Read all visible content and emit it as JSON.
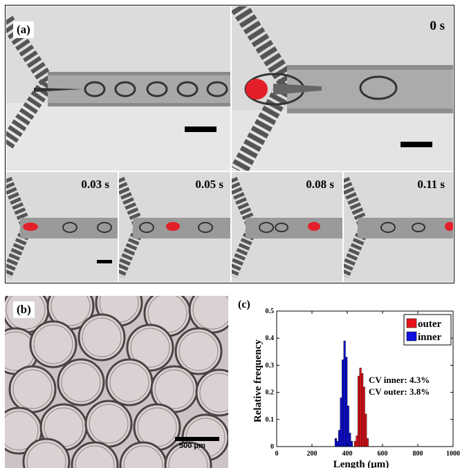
{
  "panel_a": {
    "label": "(a)",
    "frames": [
      {
        "time": "0 s"
      },
      {
        "time": "0.03 s"
      },
      {
        "time": "0.05 s"
      },
      {
        "time": "0.08 s"
      },
      {
        "time": "0.11 s"
      }
    ]
  },
  "panel_b": {
    "label": "(b)",
    "scale_label": "500 μm"
  },
  "panel_c": {
    "label": "(c)"
  },
  "colors": {
    "outer": "#e8141c",
    "inner": "#1010e0",
    "droplet_red": "#e3202a"
  },
  "chart_data": {
    "type": "bar",
    "xlabel": "Length (μm)",
    "ylabel": "Relative frequency",
    "xlim": [
      0,
      1000
    ],
    "ylim": [
      0,
      0.5
    ],
    "xticks": [
      0,
      200,
      400,
      600,
      800,
      1000
    ],
    "yticks": [
      0,
      0.1,
      0.2,
      0.3,
      0.4,
      0.5
    ],
    "grid": false,
    "legend_position": "top-right",
    "annotations": [
      "CV inner: 4.3%",
      "CV outer: 3.8%"
    ],
    "series": [
      {
        "name": "outer",
        "bin_width": 10,
        "x": [
          440,
          450,
          460,
          470,
          480,
          490,
          500,
          510
        ],
        "values": [
          0.02,
          0.04,
          0.26,
          0.29,
          0.27,
          0.22,
          0.12,
          0.03
        ]
      },
      {
        "name": "inner",
        "bin_width": 10,
        "x": [
          330,
          340,
          350,
          360,
          370,
          380,
          390,
          400,
          410,
          420
        ],
        "values": [
          0.03,
          0.02,
          0.06,
          0.18,
          0.32,
          0.39,
          0.33,
          0.15,
          0.05,
          0.02
        ]
      }
    ]
  }
}
